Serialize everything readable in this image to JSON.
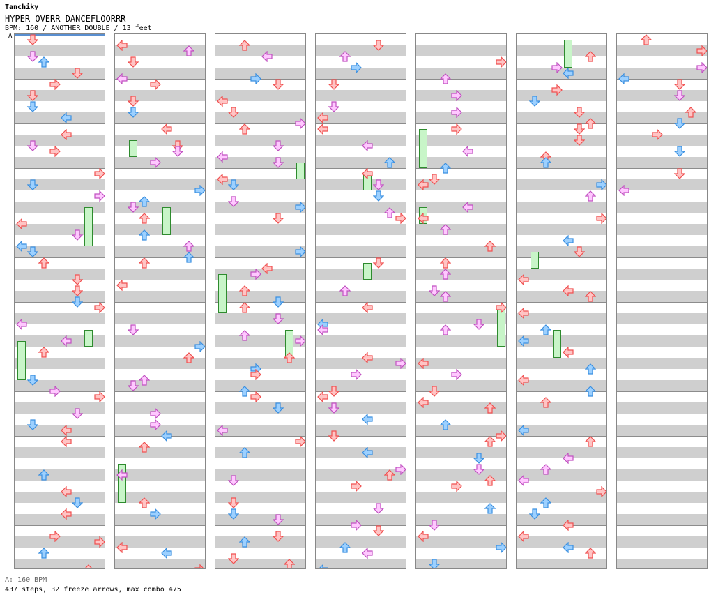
{
  "header": {
    "artist": "Tanchiky",
    "song": "HYPER OVERR DANCEFLOORRR",
    "meta": "BPM: 160 / ANOTHER DOUBLE / 13 feet"
  },
  "bpm_marker": "A",
  "footer": {
    "bpm_legend": "A: 160 BPM",
    "stats": "437 steps, 32 freeze arrows, max combo 475"
  },
  "colors": {
    "red": "#f05050",
    "red_fill": "#ffc4c4",
    "blue": "#3a8fe0",
    "blue_fill": "#9cd0ff",
    "pink": "#c050c0",
    "pink_fill": "#ffc8ff",
    "green": "#2e8b2e",
    "green_fill": "#c8f5c8",
    "stripe": "#cfcfcf"
  },
  "icons": {
    "L": "arrow-left-icon",
    "D": "arrow-down-icon",
    "U": "arrow-up-icon",
    "R": "arrow-right-icon"
  }
}
